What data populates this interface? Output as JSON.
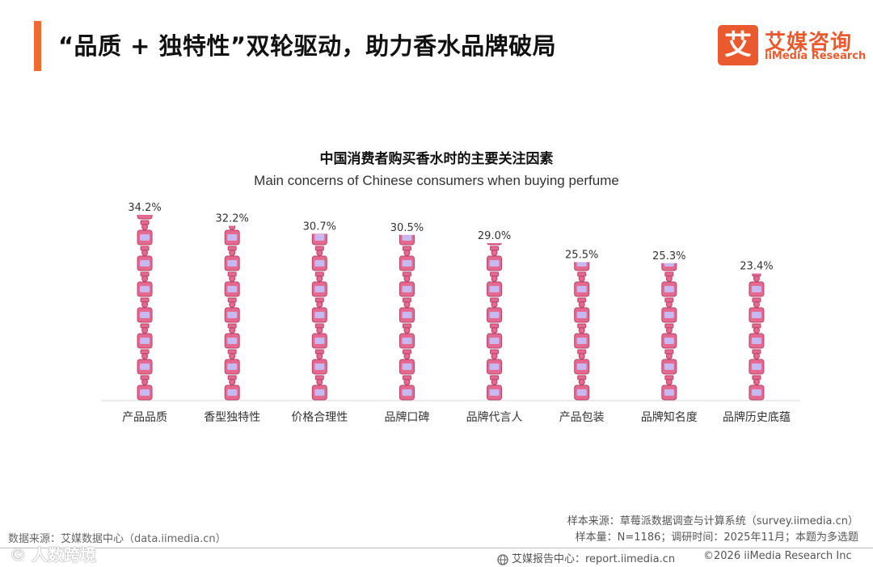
{
  "header": {
    "title": "“品质 + 独特性”双轮驱动，助力香水品牌破局",
    "accent_color": "#f06a35"
  },
  "logo": {
    "mark": "艾",
    "name_cn": "艾媒咨询",
    "name_en": "iiMedia Research",
    "color": "#ea5a2e"
  },
  "chart_data": {
    "type": "bar",
    "title": "中国消费者购买香水时的主要关注因素",
    "subtitle": "Main concerns of Chinese consumers when buying perfume",
    "categories": [
      "产品品质",
      "香型独特性",
      "价格合理性",
      "品牌口碑",
      "品牌代言人",
      "产品包装",
      "品牌知名度",
      "品牌历史底蕴"
    ],
    "values": [
      34.2,
      32.2,
      30.7,
      30.5,
      29.0,
      25.5,
      25.3,
      23.4
    ],
    "value_labels": [
      "34.2%",
      "32.2%",
      "30.7%",
      "30.5%",
      "29.0%",
      "25.5%",
      "25.3%",
      "23.4%"
    ],
    "unit": "%",
    "ylim": [
      0,
      34.2
    ],
    "grid": false,
    "legend": "none",
    "bar_style": "stacked perfume-bottle pictogram",
    "bottle_color": "#e5688f",
    "bottle_outline": "#b8436b",
    "label_color": "#c7b8f0"
  },
  "footer": {
    "data_source": "数据来源：艾媒数据中心（data.iimedia.cn）",
    "sample_source": "样本来源：草莓派数据调查与计算系统（survey.iimedia.cn）",
    "sample_size": "样本量：N=1186；调研时间：2025年11月；本题为多选题",
    "report_center": "艾媒报告中心：report.iimedia.cn",
    "copyright": "©2026  iiMedia Research  Inc"
  },
  "watermark": {
    "text": "© 人数跨境"
  }
}
